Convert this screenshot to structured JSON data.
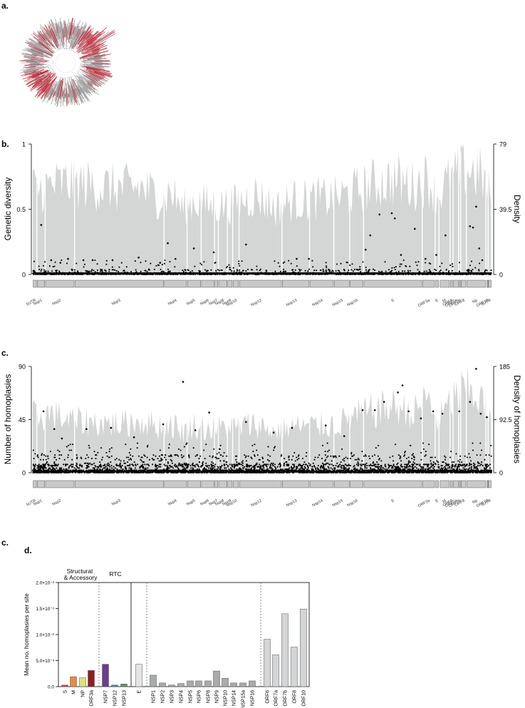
{
  "panels": {
    "a": "a.",
    "b": "b.",
    "c": "c.",
    "c2": "c.",
    "d": "d."
  },
  "colors": {
    "shade": "#d4d5d5",
    "point": "#000000",
    "gene_box": "#c8c9c9",
    "tree_grey": "#9a9a9a",
    "tree_red": "#c8202f"
  },
  "genes": [
    {
      "label": "5UTR",
      "start": 1,
      "end": 265
    },
    {
      "label": "Nsp1",
      "start": 266,
      "end": 805
    },
    {
      "label": "Nsp2",
      "start": 806,
      "end": 2719
    },
    {
      "label": "Nsp3",
      "start": 2720,
      "end": 8554
    },
    {
      "label": "Nsp4",
      "start": 8555,
      "end": 10054
    },
    {
      "label": "Nsp5",
      "start": 10055,
      "end": 10972
    },
    {
      "label": "Nsp6",
      "start": 10973,
      "end": 11842
    },
    {
      "label": "Nsp7",
      "start": 11843,
      "end": 12091
    },
    {
      "label": "Nsp8",
      "start": 12092,
      "end": 12685
    },
    {
      "label": "Nsp9",
      "start": 12686,
      "end": 13024
    },
    {
      "label": "Nsp10",
      "start": 13025,
      "end": 13441
    },
    {
      "label": "Nsp12",
      "start": 13442,
      "end": 16236
    },
    {
      "label": "Nsp13",
      "start": 16237,
      "end": 18039
    },
    {
      "label": "Nsp14",
      "start": 18040,
      "end": 19620
    },
    {
      "label": "Nsp15",
      "start": 19621,
      "end": 20658
    },
    {
      "label": "Nsp16",
      "start": 20659,
      "end": 21552
    },
    {
      "label": "S",
      "start": 21563,
      "end": 25384
    },
    {
      "label": "ORF3a",
      "start": 25393,
      "end": 26220
    },
    {
      "label": "E",
      "start": 26245,
      "end": 26472
    },
    {
      "label": "M",
      "start": 26523,
      "end": 27191
    },
    {
      "label": "ORF6",
      "start": 27202,
      "end": 27387
    },
    {
      "label": "ORF7a",
      "start": 27394,
      "end": 27759
    },
    {
      "label": "ORF7b",
      "start": 27756,
      "end": 27887
    },
    {
      "label": "ORF8",
      "start": 27894,
      "end": 28259
    },
    {
      "label": "Np",
      "start": 28274,
      "end": 29533
    },
    {
      "label": "ORF10",
      "start": 29558,
      "end": 29674
    },
    {
      "label": "3UTR",
      "start": 29675,
      "end": 29903
    }
  ],
  "chart_data": [
    {
      "type": "scatter",
      "id": "b",
      "ylabel": "Genetic diversity",
      "y2label": "Density",
      "ylim": [
        0,
        1
      ],
      "y2lim": [
        0,
        79
      ],
      "yticks": [
        "0",
        "0.5",
        "1"
      ],
      "y2ticks": [
        "0",
        "39.5",
        "79"
      ],
      "xlim": [
        1,
        29903
      ],
      "density_profile": {
        "x": [
          300,
          1200,
          2500,
          4000,
          5500,
          7000,
          8400,
          9000,
          9800,
          10500,
          11300,
          12300,
          13200,
          14500,
          15800,
          17000,
          18600,
          19900,
          21000,
          22200,
          23600,
          24800,
          25700,
          26400,
          26900,
          27500,
          28100,
          28800,
          29300,
          29800
        ],
        "y": [
          58,
          60,
          62,
          60,
          58,
          59,
          52,
          56,
          44,
          50,
          47,
          47,
          48,
          54,
          45,
          50,
          51,
          52,
          56,
          61,
          64,
          60,
          65,
          53,
          61,
          66,
          72,
          70,
          66,
          55
        ]
      },
      "points_high": {
        "x": [
          550,
          1200,
          1800,
          2300,
          3300,
          3900,
          5200,
          6900,
          8300,
          8800,
          9300,
          10500,
          11800,
          13900,
          17200,
          18000,
          21700,
          22000,
          22600,
          23400,
          23600,
          24000,
          24900,
          25600,
          26300,
          26900,
          28500,
          28700,
          28900,
          29100,
          29300
        ],
        "y": [
          0.38,
          0.11,
          0.09,
          0.12,
          0.11,
          0.11,
          0.11,
          0.13,
          0.09,
          0.24,
          0.12,
          0.2,
          0.17,
          0.23,
          0.12,
          0.12,
          0.19,
          0.3,
          0.46,
          0.47,
          0.43,
          0.15,
          0.35,
          0.12,
          0.15,
          0.3,
          0.37,
          0.36,
          0.52,
          0.2,
          0.11
        ]
      }
    },
    {
      "type": "scatter",
      "id": "c",
      "ylabel": "Number of homoplasies",
      "y2label": "Density of homoplasies",
      "ylim": [
        0,
        90
      ],
      "y2lim": [
        0,
        185
      ],
      "yticks": [
        "0",
        "45",
        "90"
      ],
      "y2ticks": [
        "0",
        "92.5",
        "185"
      ],
      "xlim": [
        1,
        29903
      ],
      "density_profile": {
        "x": [
          300,
          1200,
          2500,
          4000,
          5500,
          7000,
          8400,
          9000,
          9800,
          10500,
          11300,
          12300,
          13200,
          14500,
          15800,
          17000,
          18600,
          19900,
          21000,
          22200,
          23600,
          24800,
          25700,
          26400,
          26900,
          27500,
          28100,
          28800,
          29300,
          29800
        ],
        "y": [
          110,
          115,
          100,
          98,
          95,
          100,
          90,
          95,
          80,
          92,
          85,
          88,
          88,
          95,
          80,
          90,
          92,
          95,
          110,
          120,
          130,
          115,
          145,
          100,
          120,
          150,
          160,
          155,
          140,
          100
        ]
      },
      "points_high": {
        "x": [
          700,
          1400,
          1900,
          3500,
          5100,
          6600,
          8500,
          9800,
          10600,
          11500,
          13900,
          15700,
          16900,
          19100,
          20300,
          21500,
          22300,
          22900,
          23800,
          24100,
          24500,
          25300,
          26100,
          26700,
          27800,
          28500,
          28900,
          29200,
          29600
        ],
        "y": [
          52,
          37,
          29,
          37,
          38,
          30,
          41,
          77,
          36,
          51,
          43,
          34,
          38,
          40,
          31,
          53,
          53,
          60,
          68,
          74,
          52,
          46,
          52,
          50,
          52,
          60,
          88,
          50,
          47
        ]
      }
    },
    {
      "type": "bar",
      "id": "d",
      "ylabel": "Mean no. homoplasies per site",
      "ylim": [
        0,
        0.02
      ],
      "yticks": [
        "0.0",
        "5.0×10⁻³",
        "1.0×10⁻²",
        "1.5×10⁻²",
        "2.0×10⁻²"
      ],
      "groups": [
        "Structural & Accessory",
        "RTC"
      ],
      "categories": [
        "S",
        "M",
        "NP",
        "ORF3a",
        "NSP7",
        "NSP12",
        "NSP13",
        "E",
        "NSP1",
        "NSP2",
        "NSP3",
        "NSP4",
        "NSP5",
        "NSP6",
        "NSP8",
        "NSP9",
        "NSP10",
        "NSP14",
        "NSP15a",
        "NSP16",
        "ORF6",
        "ORF7a",
        "ORF7b",
        "ORF8",
        "ORF10"
      ],
      "values": [
        0.0003,
        0.0019,
        0.0017,
        0.0031,
        0.0043,
        0.0003,
        0.0005,
        0.0043,
        0.0022,
        0.0007,
        0.0003,
        0.0006,
        0.0011,
        0.0011,
        0.0011,
        0.003,
        0.0016,
        0.0007,
        0.0007,
        0.0011,
        0.0091,
        0.0061,
        0.014,
        0.0076,
        0.0149
      ],
      "colors": [
        "#d9453c",
        "#e98a3f",
        "#e2df79",
        "#8c1f22",
        "#6e3d8c",
        "#3a8fb8",
        "#4f9e5c",
        "#e4e5e6",
        "#a9aaab",
        "#a9aaab",
        "#a9aaab",
        "#a9aaab",
        "#a9aaab",
        "#a9aaab",
        "#a9aaab",
        "#a9aaab",
        "#a9aaab",
        "#a9aaab",
        "#a9aaab",
        "#a9aaab",
        "#d3d5d6",
        "#d3d5d6",
        "#d3d5d6",
        "#d3d5d6",
        "#d3d5d6"
      ]
    }
  ]
}
